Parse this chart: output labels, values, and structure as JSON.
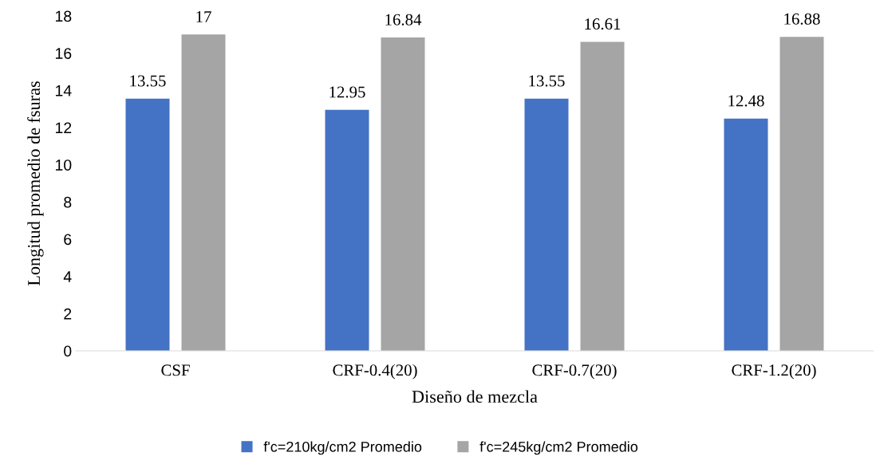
{
  "chart_data": {
    "type": "bar",
    "xlabel": "Diseño de mezcla",
    "ylabel": "Longitud promedio de fsuras",
    "categories": [
      "CSF",
      "CRF-0.4(20)",
      "CRF-0.7(20)",
      "CRF-1.2(20)"
    ],
    "series": [
      {
        "name": "f'c=210kg/cm2 Promedio",
        "color": "#4472c4",
        "values": [
          13.55,
          12.95,
          13.55,
          12.48
        ]
      },
      {
        "name": "f'c=245kg/cm2 Promedio",
        "color": "#a5a5a5",
        "values": [
          17,
          16.84,
          16.61,
          16.88
        ]
      }
    ],
    "ylim": [
      0,
      18
    ],
    "yticks": [
      0,
      2,
      4,
      6,
      8,
      10,
      12,
      14,
      16,
      18
    ],
    "data_labels": true,
    "grid": false,
    "legend": "bottom"
  }
}
